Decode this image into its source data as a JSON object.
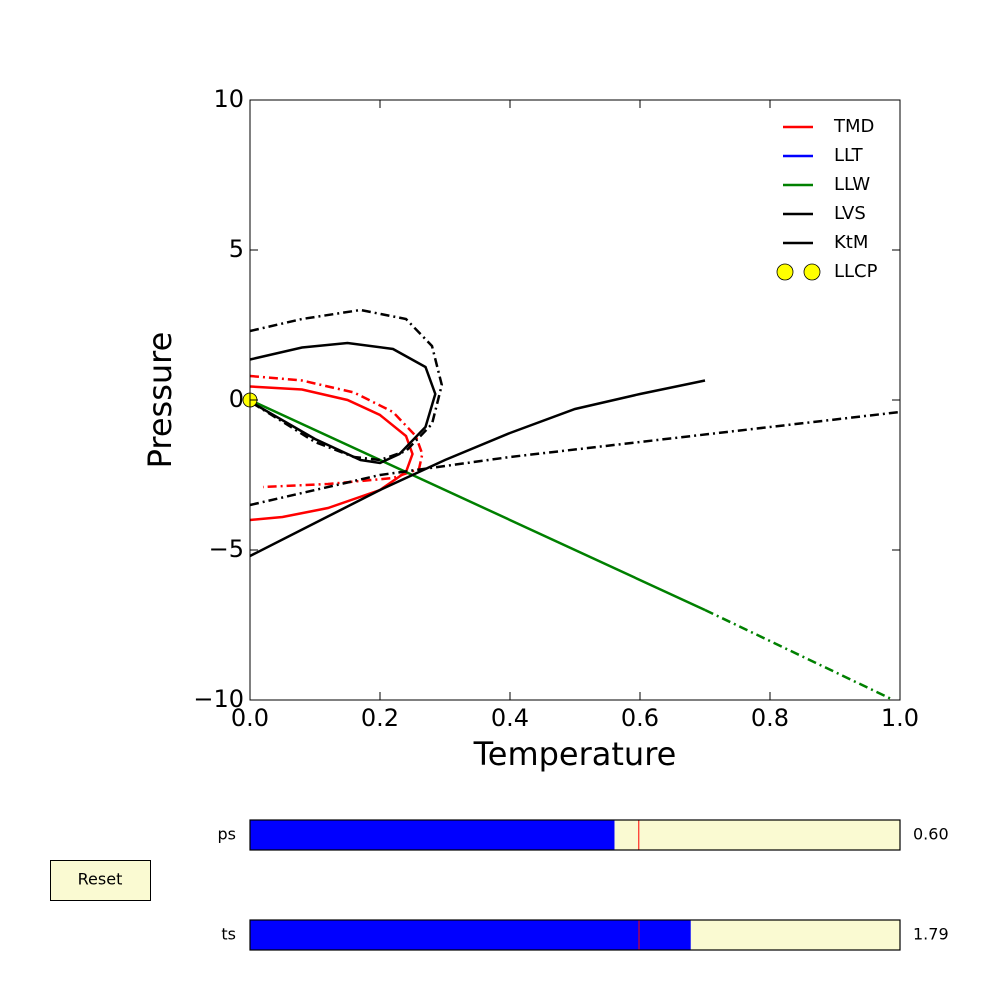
{
  "chart_data": {
    "type": "line",
    "xlabel": "Temperature",
    "ylabel": "Pressure",
    "xlim": [
      0,
      1
    ],
    "ylim": [
      -10,
      10
    ],
    "xticks": [
      {
        "value": 0,
        "label": "0.0"
      },
      {
        "value": 0.2,
        "label": "0.2"
      },
      {
        "value": 0.4,
        "label": "0.4"
      },
      {
        "value": 0.6,
        "label": "0.6"
      },
      {
        "value": 0.8,
        "label": "0.8"
      },
      {
        "value": 1,
        "label": "1.0"
      }
    ],
    "yticks": [
      {
        "value": -10,
        "label": "−10"
      },
      {
        "value": -5,
        "label": "−5"
      },
      0,
      5,
      10
    ],
    "legend": "upper right",
    "series": [
      {
        "name": "TMD",
        "color": "#ff0000",
        "lines": [
          {
            "style": "solid",
            "x": [
              0,
              0.08,
              0.15,
              0.2,
              0.24,
              0.25,
              0.24,
              0.2,
              0.12,
              0.05,
              0
            ],
            "y": [
              0.45,
              0.35,
              0.0,
              -0.5,
              -1.2,
              -1.8,
              -2.4,
              -3.0,
              -3.6,
              -3.9,
              -4.0
            ]
          },
          {
            "style": "dashdot",
            "x": [
              0,
              0.08,
              0.16,
              0.22,
              0.255,
              0.265,
              0.26,
              0.22,
              0.12,
              0.02
            ],
            "y": [
              0.8,
              0.65,
              0.25,
              -0.4,
              -1.2,
              -1.8,
              -2.3,
              -2.6,
              -2.8,
              -2.9
            ]
          }
        ]
      },
      {
        "name": "LLT",
        "color": "#0000ff",
        "lines": []
      },
      {
        "name": "LLW",
        "color": "#008000",
        "lines": [
          {
            "style": "solid",
            "x": [
              0,
              0.7
            ],
            "y": [
              0,
              -7
            ]
          },
          {
            "style": "dashdot",
            "x": [
              0.7,
              0.99
            ],
            "y": [
              -7,
              -10
            ]
          }
        ]
      },
      {
        "name": "LVS",
        "color": "#000000",
        "lines": [
          {
            "style": "solid",
            "x": [
              0,
              0.08,
              0.15,
              0.22,
              0.27,
              0.285,
              0.27,
              0.23,
              0.2,
              0.17,
              0.1,
              0
            ],
            "y": [
              1.35,
              1.75,
              1.9,
              1.7,
              1.1,
              0.2,
              -0.9,
              -1.8,
              -2.1,
              -2.0,
              -1.3,
              -0.05
            ]
          },
          {
            "style": "dashdot",
            "x": [
              0,
              0.08,
              0.17,
              0.24,
              0.28,
              0.295,
              0.28,
              0.24,
              0.2,
              0.16,
              0.1,
              0
            ],
            "y": [
              2.3,
              2.7,
              3.0,
              2.7,
              1.8,
              0.5,
              -0.8,
              -1.7,
              -2.0,
              -1.9,
              -1.4,
              -0.05
            ]
          }
        ]
      },
      {
        "name": "KtM",
        "color": "#000000",
        "lines": [
          {
            "style": "solid",
            "x": [
              0,
              0.1,
              0.2,
              0.3,
              0.4,
              0.5,
              0.6,
              0.7
            ],
            "y": [
              -5.2,
              -4.1,
              -3.0,
              -2.0,
              -1.1,
              -0.3,
              0.2,
              0.65
            ]
          },
          {
            "style": "dashdot",
            "x": [
              0,
              0.2,
              0.4,
              0.6,
              0.8,
              1
            ],
            "y": [
              -3.5,
              -2.5,
              -1.9,
              -1.4,
              -0.9,
              -0.4
            ]
          }
        ]
      },
      {
        "name": "LLCP",
        "color": "#ffff00",
        "marker": "circle",
        "points": {
          "x": [
            0
          ],
          "y": [
            0
          ]
        }
      }
    ]
  },
  "widgets": {
    "reset": "Reset",
    "sliders": [
      {
        "label": "ps",
        "valmin": 0,
        "valmax": 1.07,
        "valinit": 0.64,
        "value": 0.6,
        "value_label": "0.60",
        "color": "#0000ff"
      },
      {
        "label": "ts",
        "valmin": 0,
        "valmax": 2.64,
        "valinit": 1.58,
        "value": 1.79,
        "color": "#0000ff"
      }
    ]
  }
}
